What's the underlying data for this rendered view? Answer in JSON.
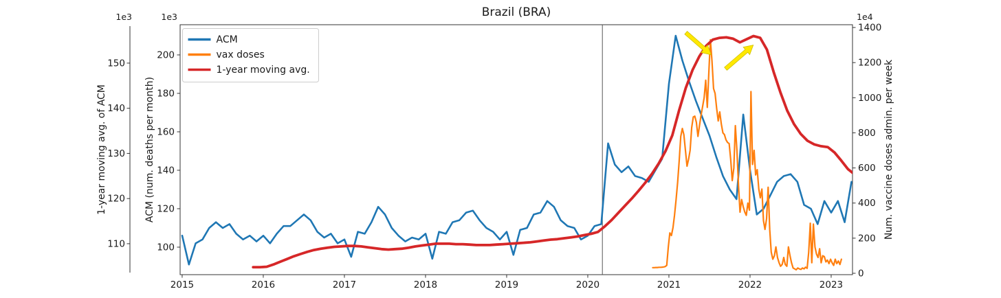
{
  "chart_data": {
    "type": "line",
    "title": "Brazil (BRA)",
    "background": "#ffffff",
    "grid": false,
    "x_axis": {
      "range": [
        2014.975,
        2023.263
      ],
      "ticks": [
        2015,
        2016,
        2017,
        2018,
        2019,
        2020,
        2021,
        2022,
        2023
      ],
      "tick_labels": [
        "2015",
        "2016",
        "2017",
        "2018",
        "2019",
        "2020",
        "2021",
        "2022",
        "2023"
      ]
    },
    "axes": {
      "acm": {
        "label": "ACM (num. deaths per month)",
        "offset_text": "1e3",
        "side": "left-inner",
        "ticks": [
          100,
          120,
          140,
          160,
          180,
          200
        ],
        "range": [
          85.7,
          215.7
        ]
      },
      "moving_avg": {
        "label": "1-year moving avg. of ACM",
        "offset_text": "1e3",
        "side": "left-outer",
        "ticks": [
          110,
          120,
          130,
          140,
          150
        ],
        "range": [
          103.6,
          158.2
        ]
      },
      "vax": {
        "label": "Num. vaccine doses admin. per week",
        "offset_text": "1e4",
        "side": "right",
        "ticks": [
          0,
          200,
          400,
          600,
          800,
          1000,
          1200,
          1400
        ],
        "range": [
          0,
          1408
        ]
      }
    },
    "legend": {
      "position": "upper-left",
      "entries": [
        {
          "label": "ACM",
          "color": "#1f77b4"
        },
        {
          "label": "vax doses",
          "color": "#ff7f0e"
        },
        {
          "label": "1-year moving avg.",
          "color": "#d62728"
        }
      ]
    },
    "event_line": {
      "x": 2020.18,
      "color": "#555555"
    },
    "annotations": [
      {
        "type": "arrow",
        "color": "#ffe800",
        "tail": [
          2021.21,
          1370
        ],
        "tip": [
          2021.52,
          1245
        ]
      },
      {
        "type": "arrow",
        "color": "#ffe800",
        "tail": [
          2021.7,
          1165
        ],
        "tip": [
          2022.04,
          1300
        ]
      }
    ],
    "series": [
      {
        "name": "ACM",
        "color": "#1f77b4",
        "axis": "acm",
        "width": 2.6,
        "x_start": 2015.0,
        "x_step": 0.0833333,
        "values": [
          106,
          91,
          102,
          104,
          110,
          113,
          110,
          112,
          107,
          104,
          106,
          103,
          106,
          102,
          107,
          111,
          111,
          114,
          117,
          114,
          108,
          105,
          107,
          102,
          104,
          95,
          108,
          107,
          113,
          121,
          117,
          110,
          106,
          103,
          105,
          104,
          107,
          94,
          108,
          107,
          113,
          114,
          118,
          119,
          114,
          110,
          108,
          104,
          108,
          96,
          109,
          110,
          117,
          118,
          124,
          121,
          114,
          111,
          110,
          104,
          106,
          111,
          112,
          154,
          143,
          139,
          142,
          137,
          136,
          134,
          140,
          146,
          185,
          210,
          197,
          186,
          176,
          167,
          158,
          147,
          137,
          130,
          125,
          169,
          140,
          117,
          120,
          127,
          134,
          137,
          138,
          134,
          122,
          120,
          112,
          124,
          118,
          124,
          113,
          134
        ]
      },
      {
        "name": "vax doses",
        "color": "#ff7f0e",
        "axis": "vax",
        "width": 2.2,
        "x_start": 2020.8,
        "x_step": 0.0192308,
        "values": [
          32,
          32,
          33,
          33,
          34,
          34,
          35,
          36,
          38,
          45,
          150,
          230,
          215,
          260,
          330,
          420,
          520,
          640,
          780,
          825,
          790,
          700,
          610,
          650,
          700,
          830,
          890,
          895,
          860,
          780,
          840,
          900,
          950,
          1000,
          1100,
          945,
          1150,
          1330,
          1210,
          1052,
          1025,
          940,
          868,
          919,
          850,
          800,
          790,
          760,
          745,
          739,
          650,
          528,
          600,
          841,
          700,
          500,
          348,
          420,
          380,
          350,
          330,
          400,
          360,
          1035,
          620,
          700,
          560,
          590,
          480,
          430,
          480,
          300,
          250,
          310,
          490,
          250,
          120,
          80,
          100,
          150,
          90,
          60,
          40,
          50,
          90,
          50,
          40,
          150,
          100,
          60,
          30,
          25,
          20,
          30,
          25,
          22,
          30,
          25,
          35,
          28,
          120,
          285,
          60,
          280,
          150,
          110,
          90,
          140,
          60,
          100,
          95,
          65,
          75,
          55,
          80,
          60,
          45,
          80,
          55,
          70,
          50,
          80
        ]
      },
      {
        "name": "1-year moving avg.",
        "color": "#d62728",
        "axis": "moving_avg",
        "width": 3.8,
        "x_start": 2015.875,
        "x_step": 0.0833333,
        "values": [
          104.8,
          104.8,
          104.9,
          105.4,
          106.0,
          106.6,
          107.2,
          107.7,
          108.2,
          108.6,
          108.9,
          109.1,
          109.3,
          109.4,
          109.5,
          109.5,
          109.4,
          109.2,
          109.0,
          108.8,
          108.7,
          108.8,
          108.9,
          109.1,
          109.4,
          109.6,
          109.8,
          110.0,
          110.0,
          110.0,
          109.9,
          109.9,
          109.8,
          109.7,
          109.7,
          109.7,
          109.8,
          109.9,
          110.0,
          110.1,
          110.2,
          110.3,
          110.5,
          110.7,
          110.9,
          111.0,
          111.2,
          111.4,
          111.6,
          111.9,
          112.2,
          112.6,
          113.8,
          115.2,
          116.8,
          118.4,
          120.0,
          121.7,
          123.5,
          125.5,
          127.8,
          130.5,
          134.0,
          139.5,
          144.5,
          148.5,
          151.5,
          153.8,
          155.2,
          155.6,
          155.7,
          155.4,
          154.6,
          155.3,
          156.0,
          155.6,
          153.0,
          148.0,
          143.5,
          139.5,
          136.5,
          134.3,
          132.8,
          132.0,
          131.6,
          131.4,
          130.2,
          128.4,
          126.5,
          125.3,
          125.6
        ]
      }
    ]
  }
}
